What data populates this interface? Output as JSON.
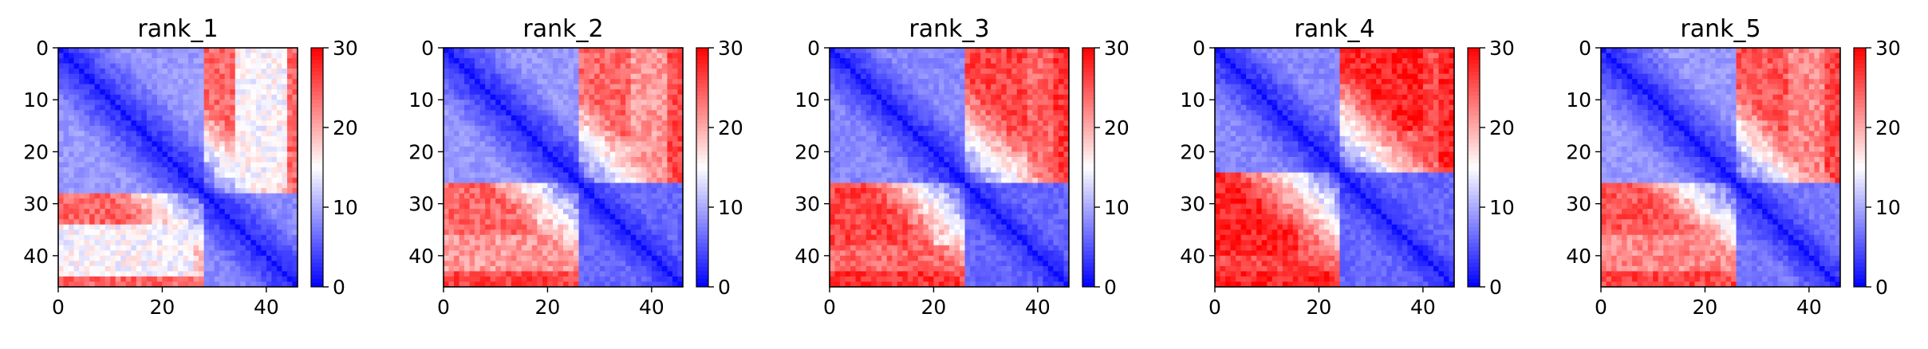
{
  "chart_data": [
    {
      "type": "heatmap",
      "title": "rank_1",
      "n": 46,
      "xlim": [
        0,
        46
      ],
      "ylim": [
        46,
        0
      ],
      "xticks": [
        "0",
        "20",
        "40"
      ],
      "yticks": [
        "0",
        "10",
        "20",
        "30",
        "40"
      ],
      "colorbar": {
        "cmap": "bwr",
        "min": 0,
        "max": 30,
        "ticks": [
          "0",
          "10",
          "20",
          "30"
        ]
      },
      "blocks": [
        [
          0,
          28,
          9
        ],
        [
          28,
          46,
          8
        ]
      ],
      "bg": [
        [
          0,
          8,
          24,
          46,
          26
        ],
        [
          0,
          12,
          35,
          46,
          22
        ],
        [
          26,
          34,
          0,
          18,
          24
        ],
        [
          26,
          34,
          18,
          28,
          18
        ],
        [
          34,
          44,
          0,
          26,
          15
        ],
        [
          44,
          46,
          0,
          46,
          24
        ]
      ]
    },
    {
      "type": "heatmap",
      "title": "rank_2",
      "n": 46,
      "xlim": [
        0,
        46
      ],
      "ylim": [
        46,
        0
      ],
      "xticks": [
        "0",
        "20",
        "40"
      ],
      "yticks": [
        "0",
        "10",
        "20",
        "30",
        "40"
      ],
      "colorbar": {
        "cmap": "bwr",
        "min": 0,
        "max": 30,
        "ticks": [
          "0",
          "10",
          "20",
          "30"
        ]
      },
      "blocks": [
        [
          0,
          26,
          9
        ],
        [
          26,
          46,
          6
        ]
      ],
      "bg": [
        [
          0,
          10,
          30,
          46,
          28
        ],
        [
          0,
          18,
          22,
          46,
          24
        ],
        [
          24,
          36,
          0,
          18,
          24
        ],
        [
          36,
          46,
          0,
          30,
          21
        ],
        [
          43,
          46,
          0,
          46,
          26
        ]
      ]
    },
    {
      "type": "heatmap",
      "title": "rank_3",
      "n": 46,
      "xlim": [
        0,
        46
      ],
      "ylim": [
        46,
        0
      ],
      "xticks": [
        "0",
        "20",
        "40"
      ],
      "yticks": [
        "0",
        "10",
        "20",
        "30",
        "40"
      ],
      "colorbar": {
        "cmap": "bwr",
        "min": 0,
        "max": 30,
        "ticks": [
          "0",
          "10",
          "20",
          "30"
        ]
      },
      "blocks": [
        [
          0,
          26,
          8
        ],
        [
          26,
          46,
          6
        ]
      ],
      "bg": [
        [
          0,
          12,
          28,
          46,
          28
        ],
        [
          0,
          20,
          20,
          46,
          24
        ],
        [
          24,
          38,
          0,
          16,
          26
        ],
        [
          38,
          46,
          0,
          26,
          24
        ],
        [
          43,
          46,
          0,
          46,
          27
        ]
      ]
    },
    {
      "type": "heatmap",
      "title": "rank_4",
      "n": 46,
      "xlim": [
        0,
        46
      ],
      "ylim": [
        46,
        0
      ],
      "xticks": [
        "0",
        "20",
        "40"
      ],
      "yticks": [
        "0",
        "10",
        "20",
        "30",
        "40"
      ],
      "colorbar": {
        "cmap": "bwr",
        "min": 0,
        "max": 30,
        "ticks": [
          "0",
          "10",
          "20",
          "30"
        ]
      },
      "blocks": [
        [
          0,
          24,
          8
        ],
        [
          24,
          46,
          6
        ]
      ],
      "bg": [
        [
          0,
          12,
          22,
          46,
          27
        ],
        [
          0,
          24,
          18,
          46,
          24
        ],
        [
          22,
          40,
          0,
          16,
          28
        ],
        [
          40,
          46,
          0,
          20,
          26
        ],
        [
          43,
          46,
          0,
          46,
          28
        ]
      ]
    },
    {
      "type": "heatmap",
      "title": "rank_5",
      "n": 46,
      "xlim": [
        0,
        46
      ],
      "ylim": [
        46,
        0
      ],
      "xticks": [
        "0",
        "20",
        "40"
      ],
      "yticks": [
        "0",
        "10",
        "20",
        "30",
        "40"
      ],
      "colorbar": {
        "cmap": "bwr",
        "min": 0,
        "max": 30,
        "ticks": [
          "0",
          "10",
          "20",
          "30"
        ]
      },
      "blocks": [
        [
          0,
          26,
          9
        ],
        [
          26,
          46,
          7
        ]
      ],
      "bg": [
        [
          0,
          10,
          24,
          46,
          28
        ],
        [
          0,
          22,
          20,
          46,
          23
        ],
        [
          24,
          36,
          0,
          18,
          25
        ],
        [
          36,
          46,
          0,
          28,
          22
        ],
        [
          43,
          46,
          0,
          46,
          26
        ]
      ]
    }
  ]
}
